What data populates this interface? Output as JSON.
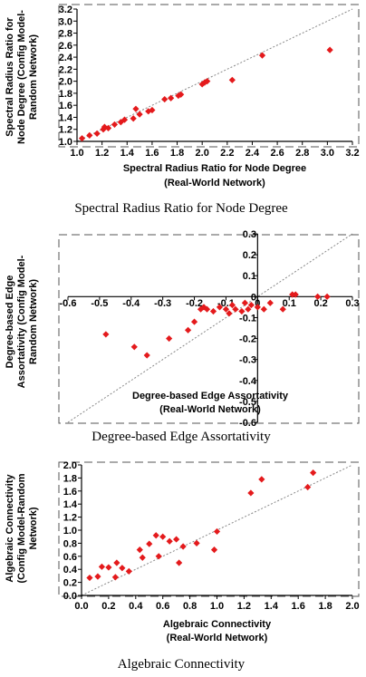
{
  "colors": {
    "marker": "#e41a1c",
    "diagonal": "#888888",
    "frame": "#555555"
  },
  "chart_data": [
    {
      "type": "scatter",
      "caption": "Spectral Radius Ratio for Node Degree",
      "xlabel": [
        "Spectral Radius Ratio for Node Degree",
        "(Real-World Network)"
      ],
      "ylabel": [
        "Spectral Radius Ratio for",
        "Node Degree (Config Model-",
        "Random Network)"
      ],
      "xlim": [
        1.0,
        3.2
      ],
      "ylim": [
        1.0,
        3.2
      ],
      "xticks": [
        "1.0",
        "1.2",
        "1.4",
        "1.6",
        "1.8",
        "2.0",
        "2.2",
        "2.4",
        "2.6",
        "2.8",
        "3.0",
        "3.2"
      ],
      "yticks": [
        "1.0",
        "1.2",
        "1.4",
        "1.6",
        "1.8",
        "2.0",
        "2.2",
        "2.4",
        "2.6",
        "2.8",
        "3.0",
        "3.2"
      ],
      "diagonal": true,
      "points": [
        {
          "x": 1.04,
          "y": 1.05
        },
        {
          "x": 1.1,
          "y": 1.1
        },
        {
          "x": 1.16,
          "y": 1.13
        },
        {
          "x": 1.21,
          "y": 1.2
        },
        {
          "x": 1.22,
          "y": 1.24
        },
        {
          "x": 1.25,
          "y": 1.22
        },
        {
          "x": 1.3,
          "y": 1.28
        },
        {
          "x": 1.35,
          "y": 1.32
        },
        {
          "x": 1.38,
          "y": 1.36
        },
        {
          "x": 1.45,
          "y": 1.38
        },
        {
          "x": 1.47,
          "y": 1.54
        },
        {
          "x": 1.5,
          "y": 1.45
        },
        {
          "x": 1.57,
          "y": 1.5
        },
        {
          "x": 1.6,
          "y": 1.52
        },
        {
          "x": 1.7,
          "y": 1.7
        },
        {
          "x": 1.75,
          "y": 1.72
        },
        {
          "x": 1.81,
          "y": 1.76
        },
        {
          "x": 1.83,
          "y": 1.78
        },
        {
          "x": 2.0,
          "y": 1.95
        },
        {
          "x": 2.02,
          "y": 1.98
        },
        {
          "x": 2.04,
          "y": 2.0
        },
        {
          "x": 2.24,
          "y": 2.02
        },
        {
          "x": 2.48,
          "y": 2.43
        },
        {
          "x": 3.02,
          "y": 2.52
        }
      ]
    },
    {
      "type": "scatter",
      "caption": "Degree-based Edge Assortativity",
      "xlabel": [
        "Degree-based Edge Assortativity",
        "(Real-World Network)"
      ],
      "ylabel": [
        "Degree-based Edge",
        "Assortativity (Config Model-",
        "Random Network)"
      ],
      "xlim": [
        -0.6,
        0.3
      ],
      "ylim": [
        -0.6,
        0.3
      ],
      "xticks": [
        "-0.6",
        "-0.5",
        "-0.4",
        "-0.3",
        "-0.2",
        "-0.1",
        "0",
        "0.1",
        "0.2",
        "0.3"
      ],
      "yticks": [
        "0.3",
        "0.2",
        "0.1",
        "0",
        "-0.1",
        "-0.2",
        "-0.3",
        "-0.4",
        "-0.5",
        "-0.6"
      ],
      "diagonal": true,
      "points": [
        {
          "x": -0.48,
          "y": -0.18
        },
        {
          "x": -0.39,
          "y": -0.24
        },
        {
          "x": -0.35,
          "y": -0.28
        },
        {
          "x": -0.28,
          "y": -0.2
        },
        {
          "x": -0.22,
          "y": -0.16
        },
        {
          "x": -0.2,
          "y": -0.12
        },
        {
          "x": -0.18,
          "y": -0.06
        },
        {
          "x": -0.17,
          "y": -0.05
        },
        {
          "x": -0.16,
          "y": -0.06
        },
        {
          "x": -0.14,
          "y": -0.07
        },
        {
          "x": -0.12,
          "y": -0.05
        },
        {
          "x": -0.1,
          "y": -0.06
        },
        {
          "x": -0.09,
          "y": -0.08
        },
        {
          "x": -0.08,
          "y": -0.04
        },
        {
          "x": -0.07,
          "y": -0.06
        },
        {
          "x": -0.05,
          "y": -0.07
        },
        {
          "x": -0.04,
          "y": -0.03
        },
        {
          "x": -0.03,
          "y": -0.06
        },
        {
          "x": -0.02,
          "y": -0.04
        },
        {
          "x": 0.0,
          "y": -0.05
        },
        {
          "x": 0.02,
          "y": -0.06
        },
        {
          "x": 0.04,
          "y": -0.03
        },
        {
          "x": 0.08,
          "y": -0.06
        },
        {
          "x": 0.11,
          "y": 0.01
        },
        {
          "x": 0.12,
          "y": 0.01
        },
        {
          "x": 0.19,
          "y": 0.0
        },
        {
          "x": 0.22,
          "y": 0.0
        }
      ]
    },
    {
      "type": "scatter",
      "caption": "Algebraic Connectivity",
      "xlabel": [
        "Algebraic Connectivity",
        "(Real-World Network)"
      ],
      "ylabel": [
        "Algebraic Connectivity",
        "(Config Model-Random",
        "Network)"
      ],
      "xlim": [
        0.0,
        2.0
      ],
      "ylim": [
        0.0,
        2.0
      ],
      "xticks": [
        "0.0",
        "0.2",
        "0.4",
        "0.6",
        "0.8",
        "1.0",
        "1.2",
        "1.4",
        "1.6",
        "1.8",
        "2.0"
      ],
      "yticks": [
        "0.0",
        "0.2",
        "0.4",
        "0.6",
        "0.8",
        "1.0",
        "1.2",
        "1.4",
        "1.6",
        "1.8",
        "2.0"
      ],
      "diagonal": true,
      "points": [
        {
          "x": 0.06,
          "y": 0.27
        },
        {
          "x": 0.12,
          "y": 0.29
        },
        {
          "x": 0.15,
          "y": 0.44
        },
        {
          "x": 0.2,
          "y": 0.43
        },
        {
          "x": 0.25,
          "y": 0.28
        },
        {
          "x": 0.26,
          "y": 0.5
        },
        {
          "x": 0.3,
          "y": 0.42
        },
        {
          "x": 0.35,
          "y": 0.37
        },
        {
          "x": 0.43,
          "y": 0.7
        },
        {
          "x": 0.45,
          "y": 0.58
        },
        {
          "x": 0.5,
          "y": 0.79
        },
        {
          "x": 0.55,
          "y": 0.92
        },
        {
          "x": 0.57,
          "y": 0.6
        },
        {
          "x": 0.6,
          "y": 0.9
        },
        {
          "x": 0.65,
          "y": 0.83
        },
        {
          "x": 0.7,
          "y": 0.86
        },
        {
          "x": 0.72,
          "y": 0.5
        },
        {
          "x": 0.75,
          "y": 0.75
        },
        {
          "x": 0.85,
          "y": 0.8
        },
        {
          "x": 0.98,
          "y": 0.7
        },
        {
          "x": 1.0,
          "y": 0.98
        },
        {
          "x": 1.25,
          "y": 1.57
        },
        {
          "x": 1.33,
          "y": 1.78
        },
        {
          "x": 1.67,
          "y": 1.66
        },
        {
          "x": 1.71,
          "y": 1.88
        }
      ]
    }
  ]
}
